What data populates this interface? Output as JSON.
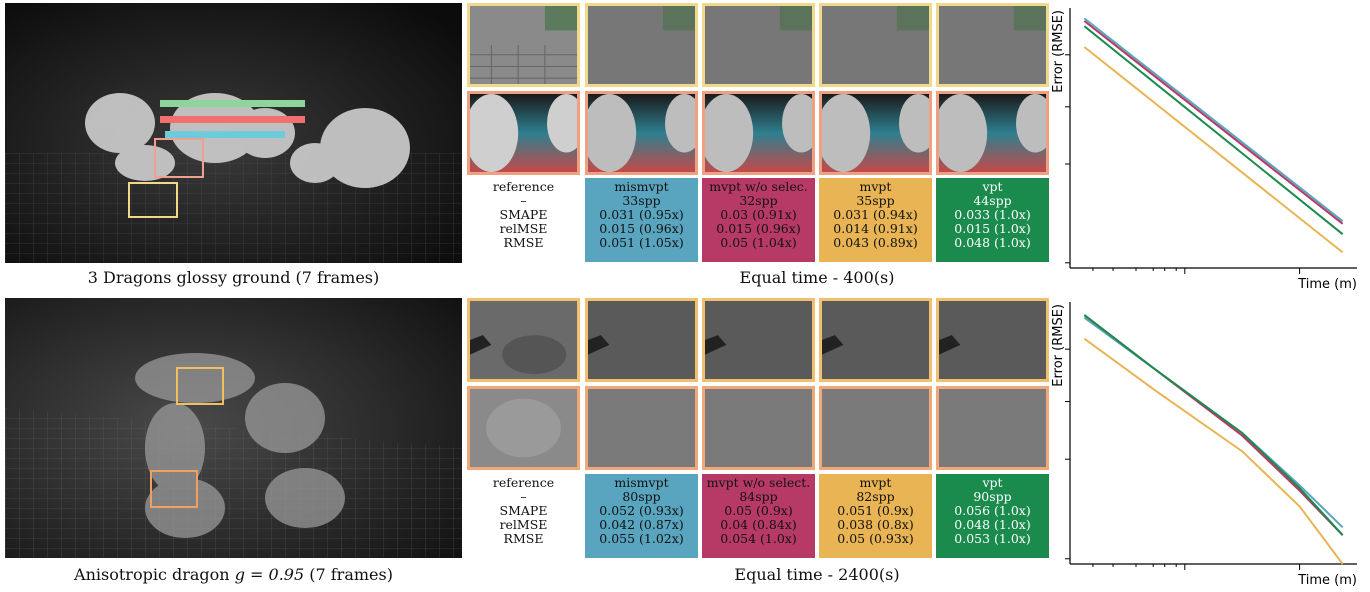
{
  "colors": {
    "mismvpt": "#59a5bf",
    "mvpt_wo": "#b73a66",
    "mvpt": "#e8b454",
    "vpt": "#1b8b4d",
    "ref_border_top": "#f0d98a",
    "ref_border_bottom": "#f0b080"
  },
  "rows": [
    {
      "scene_caption": "3 Dragons glossy ground (7 frames)",
      "time_caption": "Equal time - 400(s)",
      "labels": [
        "reference",
        "–",
        "SMAPE",
        "relMSE",
        "RMSE"
      ],
      "methods": [
        {
          "key": "mismvpt",
          "name": "mismvpt",
          "spp": "33spp",
          "smape": "0.031 (0.95x)",
          "relmse": "0.015 (0.96x)",
          "rmse": "0.051 (1.05x)"
        },
        {
          "key": "mvpt_wo",
          "name": "mvpt w/o selec.",
          "spp": "32spp",
          "smape": "0.03 (0.91x)",
          "relmse": "0.015 (0.96x)",
          "rmse": "0.05 (1.04x)"
        },
        {
          "key": "mvpt",
          "name": "mvpt",
          "spp": "35spp",
          "smape": "0.031 (0.94x)",
          "relmse": "0.014 (0.91x)",
          "rmse": "0.043 (0.89x)"
        },
        {
          "key": "vpt",
          "name": "vpt",
          "spp": "44spp",
          "smape": "0.033 (1.0x)",
          "relmse": "0.015 (1.0x)",
          "rmse": "0.048 (1.0x)"
        }
      ],
      "plot": {
        "xlabel": "Time (m)",
        "ylabel": "Error (RMSE)"
      }
    },
    {
      "scene_caption": "Anisotropic dragon",
      "scene_math": "g = 0.95",
      "scene_suffix": "(7 frames)",
      "time_caption": "Equal time - 2400(s)",
      "labels": [
        "reference",
        "–",
        "SMAPE",
        "relMSE",
        "RMSE"
      ],
      "methods": [
        {
          "key": "mismvpt",
          "name": "mismvpt",
          "spp": "80spp",
          "smape": "0.052 (0.93x)",
          "relmse": "0.042 (0.87x)",
          "rmse": "0.055 (1.02x)"
        },
        {
          "key": "mvpt_wo",
          "name": "mvpt w/o select.",
          "spp": "84spp",
          "smape": "0.05 (0.9x)",
          "relmse": "0.04 (0.84x)",
          "rmse": "0.054 (1.0x)"
        },
        {
          "key": "mvpt",
          "name": "mvpt",
          "spp": "82spp",
          "smape": "0.051 (0.9x)",
          "relmse": "0.038 (0.8x)",
          "rmse": "0.05 (0.93x)"
        },
        {
          "key": "vpt",
          "name": "vpt",
          "spp": "90spp",
          "smape": "0.056 (1.0x)",
          "relmse": "0.048 (1.0x)",
          "rmse": "0.053 (1.0x)"
        }
      ],
      "plot": {
        "xlabel": "Time (m)",
        "ylabel": "Error (RMSE)"
      }
    }
  ],
  "chart_data": [
    {
      "type": "line",
      "scale": "log-log",
      "title": "",
      "xlabel": "Time (m)",
      "ylabel": "Error (RMSE)",
      "xlim": [
        0,
        1
      ],
      "ylim": [
        0,
        1
      ],
      "series": [
        {
          "key": "mismvpt",
          "x": [
            0.05,
            0.95
          ],
          "y": [
            0.96,
            0.18
          ]
        },
        {
          "key": "mvpt_wo",
          "x": [
            0.05,
            0.95
          ],
          "y": [
            0.95,
            0.17
          ]
        },
        {
          "key": "vpt",
          "x": [
            0.05,
            0.95
          ],
          "y": [
            0.93,
            0.13
          ]
        },
        {
          "key": "mvpt",
          "x": [
            0.05,
            0.95
          ],
          "y": [
            0.85,
            0.06
          ]
        }
      ]
    },
    {
      "type": "line",
      "scale": "log-log",
      "title": "",
      "xlabel": "Time (m)",
      "ylabel": "Error (RMSE)",
      "xlim": [
        0,
        1
      ],
      "ylim": [
        0,
        1
      ],
      "series": [
        {
          "key": "mismvpt",
          "x": [
            0.05,
            0.3,
            0.6,
            0.8,
            0.95
          ],
          "y": [
            0.94,
            0.74,
            0.5,
            0.3,
            0.14
          ]
        },
        {
          "key": "mvpt_wo",
          "x": [
            0.05,
            0.3,
            0.6,
            0.8,
            0.95
          ],
          "y": [
            0.95,
            0.74,
            0.49,
            0.28,
            0.11
          ]
        },
        {
          "key": "vpt",
          "x": [
            0.05,
            0.3,
            0.6,
            0.8,
            0.95
          ],
          "y": [
            0.95,
            0.74,
            0.5,
            0.29,
            0.11
          ]
        },
        {
          "key": "mvpt",
          "x": [
            0.05,
            0.3,
            0.6,
            0.8,
            0.95
          ],
          "y": [
            0.86,
            0.66,
            0.43,
            0.22,
            0.0
          ]
        }
      ]
    }
  ]
}
